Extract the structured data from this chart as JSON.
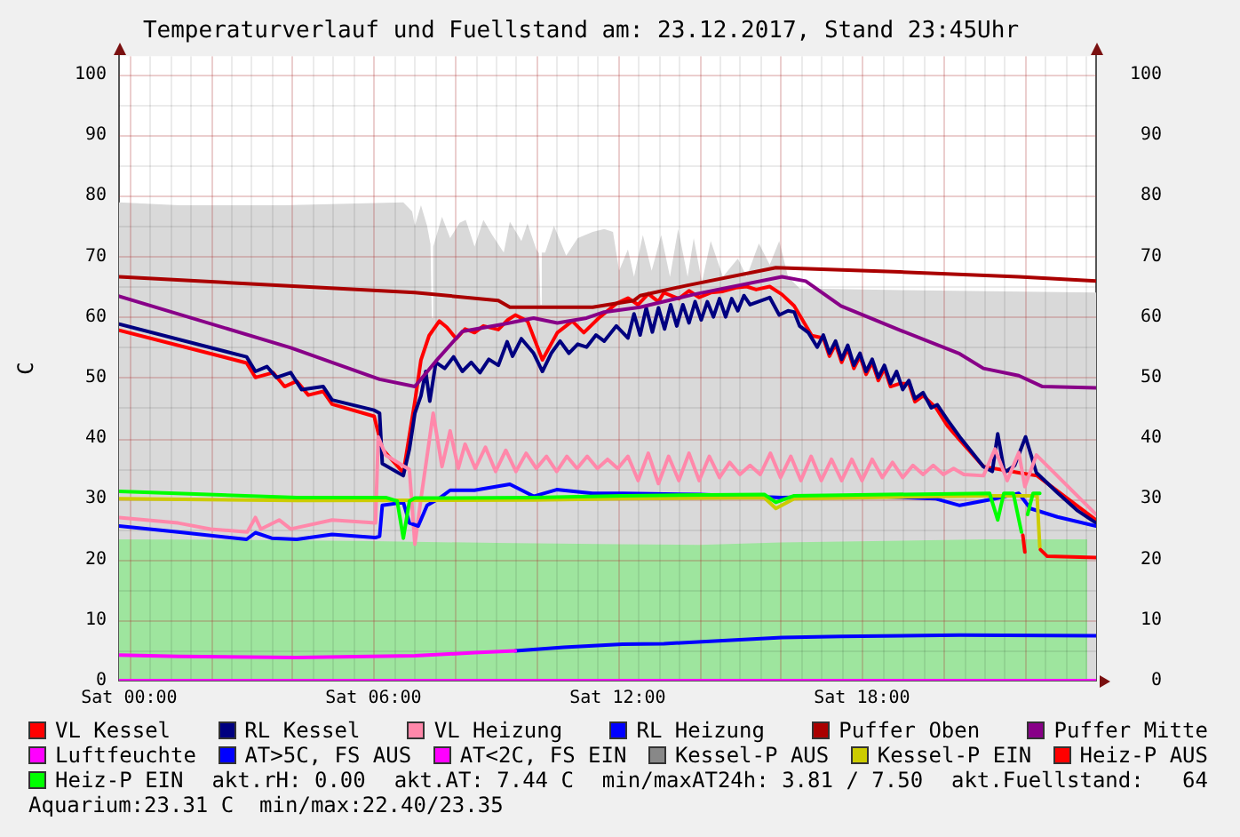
{
  "chart_data": {
    "type": "line",
    "title": "Temperaturverlauf und Fuellstand am: 23.12.2017, Stand 23:45Uhr",
    "ylabel": "C",
    "xlim": [
      "2017-12-22T23:45",
      "2017-12-23T23:45"
    ],
    "xticks": [
      {
        "value": "2017-12-23T00:00",
        "label": "Sat 00:00"
      },
      {
        "value": "2017-12-23T02:00",
        "label": null
      },
      {
        "value": "2017-12-23T04:00",
        "label": null
      },
      {
        "value": "2017-12-23T06:00",
        "label": "Sat 06:00"
      },
      {
        "value": "2017-12-23T08:00",
        "label": null
      },
      {
        "value": "2017-12-23T10:00",
        "label": null
      },
      {
        "value": "2017-12-23T12:00",
        "label": "Sat 12:00"
      },
      {
        "value": "2017-12-23T14:00",
        "label": null
      },
      {
        "value": "2017-12-23T16:00",
        "label": null
      },
      {
        "value": "2017-12-23T18:00",
        "label": "Sat 18:00"
      },
      {
        "value": "2017-12-23T20:00",
        "label": null
      },
      {
        "value": "2017-12-23T22:00",
        "label": null
      }
    ],
    "ylim": [
      0,
      103
    ],
    "yticks": [
      0,
      10,
      20,
      30,
      40,
      50,
      60,
      70,
      80,
      90,
      100
    ],
    "y2lim": [
      0,
      103
    ],
    "y2ticks": [
      0,
      10,
      20,
      30,
      40,
      50,
      60,
      70,
      80,
      90,
      100
    ],
    "grid": true,
    "legend": "bottom",
    "marker": "none",
    "series": [
      {
        "type": "area",
        "color": "#d9d9d9",
        "x": [
          "2017-12-22T23:45",
          "2017-12-23T01:13",
          "2017-12-23T03:49",
          "2017-12-23T06:44",
          "2017-12-23T06:50",
          "2017-12-23T06:57",
          "2017-12-23T07:01",
          "2017-12-23T07:10",
          "2017-12-23T07:19",
          "2017-12-23T07:24",
          "2017-12-23T07:26",
          "2017-12-23T07:28",
          "2017-12-23T07:41",
          "2017-12-23T07:53",
          "2017-12-23T08:07",
          "2017-12-23T08:16",
          "2017-12-23T08:29",
          "2017-12-23T08:42",
          "2017-12-23T08:55",
          "2017-12-23T09:12",
          "2017-12-23T09:21",
          "2017-12-23T09:38",
          "2017-12-23T09:47",
          "2017-12-23T10:00",
          "2017-12-23T10:04",
          "2017-12-23T10:06",
          "2017-12-23T10:08",
          "2017-12-23T10:13",
          "2017-12-23T10:26",
          "2017-12-23T10:44",
          "2017-12-23T11:01",
          "2017-12-23T11:23",
          "2017-12-23T11:40",
          "2017-12-23T11:53",
          "2017-12-23T12:02",
          "2017-12-23T12:15",
          "2017-12-23T12:24",
          "2017-12-23T12:37",
          "2017-12-23T12:50",
          "2017-12-23T13:04",
          "2017-12-23T13:17",
          "2017-12-23T13:29",
          "2017-12-23T13:43",
          "2017-12-23T13:52",
          "2017-12-23T14:04",
          "2017-12-23T14:17",
          "2017-12-23T14:35",
          "2017-12-23T14:57",
          "2017-12-23T15:10",
          "2017-12-23T15:28",
          "2017-12-23T15:44",
          "2017-12-23T15:58",
          "2017-12-23T16:11",
          "2017-12-23T16:28",
          "2017-12-23T18:56",
          "2017-12-23T23:45"
        ],
        "values": [
          78.9,
          78.4,
          78.4,
          78.9,
          78.2,
          77.4,
          75.0,
          78.4,
          75.0,
          72.0,
          59.8,
          71.6,
          76.5,
          73.0,
          75.5,
          76.0,
          71.6,
          76.0,
          73.5,
          70.6,
          75.7,
          72.5,
          75.4,
          71.1,
          70.5,
          62.0,
          70.6,
          70.6,
          75.0,
          70.1,
          73.0,
          74.0,
          74.5,
          74.0,
          67.6,
          71.1,
          66.6,
          73.5,
          67.6,
          73.5,
          66.6,
          74.5,
          66.6,
          73.0,
          65.7,
          72.5,
          66.6,
          69.6,
          66.6,
          72.1,
          68.6,
          72.5,
          66.6,
          64.7,
          64.4,
          64.0
        ]
      },
      {
        "type": "area",
        "color": "#9ee59e",
        "x": [
          "2017-12-22T23:45",
          "2017-12-23T03:00",
          "2017-12-23T06:00",
          "2017-12-23T09:00",
          "2017-12-23T12:00",
          "2017-12-23T14:00",
          "2017-12-23T16:00",
          "2017-12-23T19:00",
          "2017-12-23T21:00",
          "2017-12-23T23:32"
        ],
        "values": [
          23.3,
          23.2,
          23.0,
          22.7,
          22.5,
          22.4,
          22.8,
          23.1,
          23.3,
          23.3
        ]
      },
      {
        "name": "VL Kessel",
        "color": "#ff0000",
        "x": [
          "2017-12-22T23:45",
          "2017-12-23T02:53",
          "2017-12-23T03:06",
          "2017-12-23T03:32",
          "2017-12-23T03:49",
          "2017-12-23T04:07",
          "2017-12-23T04:24",
          "2017-12-23T04:46",
          "2017-12-23T04:59",
          "2017-12-23T06:01",
          "2017-12-23T06:13",
          "2017-12-23T06:44",
          "2017-12-23T07:01",
          "2017-12-23T07:10",
          "2017-12-23T07:22",
          "2017-12-23T07:37",
          "2017-12-23T07:48",
          "2017-12-23T08:02",
          "2017-12-23T08:15",
          "2017-12-23T08:29",
          "2017-12-23T08:42",
          "2017-12-23T09:04",
          "2017-12-23T09:18",
          "2017-12-23T09:29",
          "2017-12-23T09:47",
          "2017-12-23T10:09",
          "2017-12-23T10:31",
          "2017-12-23T10:53",
          "2017-12-23T11:10",
          "2017-12-23T11:32",
          "2017-12-23T11:58",
          "2017-12-23T12:15",
          "2017-12-23T12:30",
          "2017-12-23T12:45",
          "2017-12-23T13:00",
          "2017-12-23T13:08",
          "2017-12-23T13:30",
          "2017-12-23T13:45",
          "2017-12-23T14:00",
          "2017-12-23T14:17",
          "2017-12-23T14:35",
          "2017-12-23T14:54",
          "2017-12-23T15:10",
          "2017-12-23T15:24",
          "2017-12-23T15:44",
          "2017-12-23T16:02",
          "2017-12-23T16:20",
          "2017-12-23T16:46",
          "2017-12-23T17:03",
          "2017-12-23T17:12",
          "2017-12-23T17:21",
          "2017-12-23T17:30",
          "2017-12-23T17:39",
          "2017-12-23T17:48",
          "2017-12-23T17:57",
          "2017-12-23T18:06",
          "2017-12-23T18:15",
          "2017-12-23T18:24",
          "2017-12-23T18:33",
          "2017-12-23T18:42",
          "2017-12-23T18:56",
          "2017-12-23T19:09",
          "2017-12-23T19:18",
          "2017-12-23T19:30",
          "2017-12-23T19:49",
          "2017-12-23T20:06",
          "2017-12-23T20:24",
          "2017-12-23T20:59",
          "2017-12-23T21:51",
          "2017-12-23T22:18",
          "2017-12-23T23:45"
        ],
        "values": [
          57.8,
          52.4,
          50.0,
          50.8,
          48.5,
          49.4,
          47.1,
          47.7,
          45.6,
          43.6,
          38.2,
          34.3,
          46.0,
          52.9,
          56.9,
          59.3,
          58.3,
          56.4,
          58.0,
          57.4,
          58.5,
          57.9,
          59.5,
          60.3,
          59.3,
          52.9,
          57.4,
          59.3,
          57.4,
          59.8,
          62.2,
          63.1,
          62.0,
          63.8,
          62.5,
          64.0,
          63.0,
          64.3,
          63.2,
          64.0,
          64.2,
          64.8,
          65.0,
          64.5,
          65.0,
          63.7,
          61.8,
          56.9,
          56.5,
          53.5,
          55.5,
          52.5,
          54.8,
          51.5,
          53.5,
          50.5,
          52.5,
          49.5,
          51.5,
          48.5,
          49.0,
          49.0,
          46.0,
          47.0,
          45.0,
          42.0,
          39.7,
          35.3,
          34.3,
          33.8,
          26.5
        ]
      },
      {
        "name": "RL Kessel",
        "color": "#000080",
        "x": [
          "2017-12-22T23:45",
          "2017-12-23T02:53",
          "2017-12-23T03:06",
          "2017-12-23T03:23",
          "2017-12-23T03:37",
          "2017-12-23T03:58",
          "2017-12-23T04:14",
          "2017-12-23T04:46",
          "2017-12-23T04:59",
          "2017-12-23T06:01",
          "2017-12-23T06:09",
          "2017-12-23T06:13",
          "2017-12-23T06:44",
          "2017-12-23T06:53",
          "2017-12-23T07:01",
          "2017-12-23T07:10",
          "2017-12-23T07:17",
          "2017-12-23T07:23",
          "2017-12-23T07:32",
          "2017-12-23T07:45",
          "2017-12-23T07:58",
          "2017-12-23T08:11",
          "2017-12-23T08:24",
          "2017-12-23T08:37",
          "2017-12-23T08:50",
          "2017-12-23T09:04",
          "2017-12-23T09:17",
          "2017-12-23T09:25",
          "2017-12-23T09:38",
          "2017-12-23T09:56",
          "2017-12-23T10:09",
          "2017-12-23T10:22",
          "2017-12-23T10:35",
          "2017-12-23T10:48",
          "2017-12-23T11:01",
          "2017-12-23T11:14",
          "2017-12-23T11:28",
          "2017-12-23T11:40",
          "2017-12-23T11:58",
          "2017-12-23T12:15",
          "2017-12-23T12:24",
          "2017-12-23T12:33",
          "2017-12-23T12:42",
          "2017-12-23T12:51",
          "2017-12-23T13:00",
          "2017-12-23T13:09",
          "2017-12-23T13:18",
          "2017-12-23T13:27",
          "2017-12-23T13:36",
          "2017-12-23T13:45",
          "2017-12-23T13:54",
          "2017-12-23T14:03",
          "2017-12-23T14:12",
          "2017-12-23T14:21",
          "2017-12-23T14:30",
          "2017-12-23T14:39",
          "2017-12-23T14:48",
          "2017-12-23T14:57",
          "2017-12-23T15:06",
          "2017-12-23T15:15",
          "2017-12-23T15:44",
          "2017-12-23T15:58",
          "2017-12-23T16:11",
          "2017-12-23T16:20",
          "2017-12-23T16:28",
          "2017-12-23T16:41",
          "2017-12-23T16:54",
          "2017-12-23T17:03",
          "2017-12-23T17:12",
          "2017-12-23T17:21",
          "2017-12-23T17:30",
          "2017-12-23T17:39",
          "2017-12-23T17:48",
          "2017-12-23T17:57",
          "2017-12-23T18:06",
          "2017-12-23T18:15",
          "2017-12-23T18:24",
          "2017-12-23T18:33",
          "2017-12-23T18:42",
          "2017-12-23T18:51",
          "2017-12-23T19:00",
          "2017-12-23T19:09",
          "2017-12-23T19:18",
          "2017-12-23T19:30",
          "2017-12-23T19:42",
          "2017-12-23T19:51",
          "2017-12-23T20:06",
          "2017-12-23T20:24",
          "2017-12-23T20:59",
          "2017-12-23T21:12",
          "2017-12-23T21:20",
          "2017-12-23T21:30",
          "2017-12-23T21:45",
          "2017-12-23T22:01",
          "2017-12-23T22:17",
          "2017-12-23T22:48",
          "2017-12-23T23:18",
          "2017-12-23T23:45"
        ],
        "values": [
          58.8,
          53.4,
          51.0,
          51.8,
          50.0,
          50.8,
          48.0,
          48.5,
          46.3,
          44.6,
          44.1,
          35.8,
          33.8,
          38.2,
          44.1,
          47.0,
          51.0,
          46.1,
          52.5,
          51.5,
          53.4,
          51.0,
          52.5,
          50.8,
          53.0,
          52.0,
          55.9,
          53.5,
          56.4,
          54.0,
          51.0,
          54.0,
          56.0,
          54.0,
          55.5,
          55.0,
          57.0,
          56.0,
          58.5,
          56.5,
          60.5,
          57.0,
          61.5,
          57.5,
          61.5,
          58.0,
          62.0,
          58.5,
          62.0,
          59.0,
          62.5,
          59.5,
          62.5,
          60.0,
          63.0,
          60.0,
          63.0,
          61.0,
          63.5,
          62.0,
          63.2,
          60.3,
          61.0,
          60.8,
          58.5,
          57.4,
          55.0,
          57.0,
          54.0,
          56.0,
          53.0,
          55.3,
          52.0,
          54.0,
          51.0,
          53.0,
          50.0,
          52.0,
          49.0,
          51.0,
          48.0,
          49.5,
          46.5,
          47.5,
          45.0,
          45.5,
          43.0,
          40.2,
          35.3,
          34.5,
          40.7,
          34.3,
          35.5,
          40.2,
          34.3,
          31.0,
          28.0,
          26.0
        ]
      },
      {
        "name": "VL Heizung",
        "color": "#ff88aa",
        "x": [
          "2017-12-22T23:45",
          "2017-12-23T01:12",
          "2017-12-23T02:00",
          "2017-12-23T02:54",
          "2017-12-23T03:06",
          "2017-12-23T03:14",
          "2017-12-23T03:41",
          "2017-12-23T03:58",
          "2017-12-23T04:59",
          "2017-12-23T06:03",
          "2017-12-23T06:07",
          "2017-12-23T06:18",
          "2017-12-23T06:53",
          "2017-12-23T07:01",
          "2017-12-23T07:10",
          "2017-12-23T07:28",
          "2017-12-23T07:41",
          "2017-12-23T07:53",
          "2017-12-23T08:05",
          "2017-12-23T08:15",
          "2017-12-23T08:30",
          "2017-12-23T08:45",
          "2017-12-23T09:00",
          "2017-12-23T09:15",
          "2017-12-23T09:30",
          "2017-12-23T09:45",
          "2017-12-23T10:00",
          "2017-12-23T10:15",
          "2017-12-23T10:30",
          "2017-12-23T10:45",
          "2017-12-23T11:00",
          "2017-12-23T11:15",
          "2017-12-23T11:30",
          "2017-12-23T11:45",
          "2017-12-23T12:00",
          "2017-12-23T12:15",
          "2017-12-23T12:30",
          "2017-12-23T12:45",
          "2017-12-23T13:00",
          "2017-12-23T13:15",
          "2017-12-23T13:30",
          "2017-12-23T13:45",
          "2017-12-23T14:00",
          "2017-12-23T14:15",
          "2017-12-23T14:30",
          "2017-12-23T14:45",
          "2017-12-23T15:00",
          "2017-12-23T15:15",
          "2017-12-23T15:30",
          "2017-12-23T15:45",
          "2017-12-23T16:00",
          "2017-12-23T16:15",
          "2017-12-23T16:30",
          "2017-12-23T16:45",
          "2017-12-23T17:00",
          "2017-12-23T17:15",
          "2017-12-23T17:30",
          "2017-12-23T17:45",
          "2017-12-23T18:00",
          "2017-12-23T18:15",
          "2017-12-23T18:30",
          "2017-12-23T18:45",
          "2017-12-23T19:00",
          "2017-12-23T19:15",
          "2017-12-23T19:30",
          "2017-12-23T19:45",
          "2017-12-23T20:00",
          "2017-12-23T20:15",
          "2017-12-23T20:30",
          "2017-12-23T20:59",
          "2017-12-23T21:16",
          "2017-12-23T21:34",
          "2017-12-23T21:51",
          "2017-12-23T22:00",
          "2017-12-23T22:17",
          "2017-12-23T23:45"
        ],
        "values": [
          26.9,
          26.0,
          25.0,
          24.5,
          26.9,
          25.0,
          26.5,
          25.0,
          26.5,
          26.0,
          40.2,
          37.2,
          34.8,
          22.5,
          30.0,
          44.1,
          35.3,
          41.2,
          35.0,
          39.0,
          35.0,
          38.5,
          34.5,
          38.0,
          34.5,
          37.5,
          35.0,
          37.0,
          34.5,
          37.0,
          35.0,
          37.0,
          35.0,
          36.5,
          35.0,
          37.0,
          33.0,
          37.5,
          32.5,
          37.0,
          33.0,
          37.5,
          33.0,
          37.0,
          33.5,
          36.0,
          34.0,
          35.5,
          34.0,
          37.5,
          33.5,
          37.0,
          33.0,
          37.0,
          33.0,
          36.5,
          33.0,
          36.5,
          33.0,
          36.5,
          33.5,
          36.0,
          33.5,
          35.5,
          34.0,
          35.5,
          34.0,
          35.0,
          34.0,
          33.8,
          38.2,
          33.0,
          37.6,
          32.0,
          37.2,
          27.4
        ]
      },
      {
        "name": "RL Heizung",
        "color": "#0000ff",
        "x": [
          "2017-12-22T23:45",
          "2017-12-23T01:12",
          "2017-12-23T02:53",
          "2017-12-23T03:06",
          "2017-12-23T03:30",
          "2017-12-23T04:07",
          "2017-12-23T04:59",
          "2017-12-23T06:03",
          "2017-12-23T06:09",
          "2017-12-23T06:13",
          "2017-12-23T06:44",
          "2017-12-23T06:53",
          "2017-12-23T07:06",
          "2017-12-23T07:19",
          "2017-12-23T07:36",
          "2017-12-23T07:53",
          "2017-12-23T08:29",
          "2017-12-23T09:21",
          "2017-12-23T09:56",
          "2017-12-23T10:30",
          "2017-12-23T11:23",
          "2017-12-23T12:07",
          "2017-12-23T14:00",
          "2017-12-23T16:02",
          "2017-12-23T18:00",
          "2017-12-23T19:49",
          "2017-12-23T20:24",
          "2017-12-23T21:16",
          "2017-12-23T21:51",
          "2017-12-23T22:08",
          "2017-12-23T22:48",
          "2017-12-23T23:45"
        ],
        "values": [
          25.5,
          24.5,
          23.3,
          24.4,
          23.5,
          23.3,
          24.1,
          23.6,
          23.8,
          28.9,
          29.4,
          26.0,
          25.5,
          28.9,
          30.0,
          31.4,
          31.4,
          32.4,
          30.4,
          31.5,
          30.9,
          30.9,
          30.7,
          30.2,
          30.5,
          30.0,
          28.9,
          30.0,
          30.9,
          28.4,
          27.0,
          25.5
        ]
      },
      {
        "name": "Puffer Oben",
        "color": "#aa0000",
        "x": [
          "2017-12-22T23:45",
          "2017-12-23T07:01",
          "2017-12-23T09:04",
          "2017-12-23T09:21",
          "2017-12-23T11:23",
          "2017-12-23T12:24",
          "2017-12-23T12:33",
          "2017-12-23T13:43",
          "2017-12-23T15:53",
          "2017-12-23T18:56",
          "2017-12-23T21:51",
          "2017-12-23T23:45"
        ],
        "values": [
          66.6,
          64.0,
          62.7,
          61.6,
          61.6,
          62.7,
          63.5,
          65.2,
          68.1,
          67.4,
          66.6,
          65.9
        ]
      },
      {
        "name": "Puffer Mitte",
        "color": "#880088",
        "x": [
          "2017-12-22T23:45",
          "2017-12-23T03:58",
          "2017-12-23T06:09",
          "2017-12-23T07:01",
          "2017-12-23T07:32",
          "2017-12-23T08:11",
          "2017-12-23T09:12",
          "2017-12-23T09:56",
          "2017-12-23T10:31",
          "2017-12-23T11:14",
          "2017-12-23T11:40",
          "2017-12-23T12:33",
          "2017-12-23T13:52",
          "2017-12-23T16:02",
          "2017-12-23T16:37",
          "2017-12-23T17:29",
          "2017-12-23T18:56",
          "2017-12-23T20:24",
          "2017-12-23T20:59",
          "2017-12-23T21:51",
          "2017-12-23T22:26",
          "2017-12-23T23:45"
        ],
        "values": [
          63.4,
          54.9,
          49.7,
          48.5,
          52.7,
          57.6,
          58.8,
          59.8,
          59.0,
          59.8,
          60.8,
          61.6,
          63.7,
          66.6,
          65.9,
          61.8,
          57.8,
          53.9,
          51.5,
          50.3,
          48.5,
          48.3
        ]
      },
      {
        "name": "Luftfeuchte",
        "color": "#ff00ff",
        "x": [
          "2017-12-22T23:45",
          "2017-12-23T23:45"
        ],
        "values": [
          0,
          0
        ]
      },
      {
        "name": "AT>5C, FS AUS",
        "color": "#0000ff",
        "x": [
          "2017-12-23T09:29",
          "2017-12-23T10:40",
          "2017-12-23T12:07",
          "2017-12-23T13:08",
          "2017-12-23T14:35",
          "2017-12-23T16:02",
          "2017-12-23T17:29",
          "2017-12-23T20:24",
          "2017-12-23T23:45"
        ],
        "values": [
          4.9,
          5.5,
          6.0,
          6.1,
          6.6,
          7.1,
          7.3,
          7.5,
          7.4
        ]
      },
      {
        "name": "AT<2C, FS EIN",
        "color": "#ff00ff",
        "x": [
          "2017-12-22T23:45",
          "2017-12-23T01:13",
          "2017-12-23T04:07",
          "2017-12-23T07:01",
          "2017-12-23T08:29",
          "2017-12-23T09:29"
        ],
        "values": [
          4.2,
          4.0,
          3.8,
          4.1,
          4.6,
          4.9
        ]
      },
      {
        "name": "Kessel-P AUS",
        "color": "#888888"
      },
      {
        "name": "Kessel-P EIN",
        "color": "#cccc00",
        "x": [
          "2017-12-22T23:45",
          "2017-12-23T04:07",
          "2017-12-23T09:56",
          "2017-12-23T12:07",
          "2017-12-23T15:36",
          "2017-12-23T15:53",
          "2017-12-23T16:20",
          "2017-12-23T21:00",
          "2017-12-23T22:18",
          "2017-12-23T22:22"
        ],
        "values": [
          30.0,
          29.7,
          29.8,
          30.0,
          30.2,
          28.4,
          30.0,
          30.5,
          30.5,
          22.0
        ]
      },
      {
        "name": "Heiz-P AUS",
        "color": "#ff0000",
        "x": [
          "2017-12-23T21:57",
          "2017-12-23T22:00",
          "2017-12-23T22:03",
          "2017-12-23T22:23",
          "2017-12-23T22:33",
          "2017-12-23T23:45"
        ],
        "values": [
          24.0,
          21.2,
          null,
          21.6,
          20.5,
          20.3
        ]
      },
      {
        "name": "Heiz-P EIN",
        "color": "#00ff00",
        "x": [
          "2017-12-22T23:45",
          "2017-12-23T04:07",
          "2017-12-23T06:18",
          "2017-12-23T06:35",
          "2017-12-23T06:44",
          "2017-12-23T06:53",
          "2017-12-23T07:01",
          "2017-12-23T09:56",
          "2017-12-23T12:07",
          "2017-12-23T15:36",
          "2017-12-23T15:53",
          "2017-12-23T16:20",
          "2017-12-23T21:08",
          "2017-12-23T21:20",
          "2017-12-23T21:29",
          "2017-12-23T21:43",
          "2017-12-23T21:55",
          "2017-12-23T21:59",
          "2017-12-23T22:04",
          "2017-12-23T22:12",
          "2017-12-23T22:22"
        ],
        "values": [
          31.2,
          30.2,
          30.2,
          29.6,
          23.5,
          29.6,
          30.1,
          30.2,
          30.5,
          30.7,
          29.4,
          30.5,
          30.9,
          26.5,
          30.9,
          30.9,
          24.5,
          null,
          27.4,
          30.9,
          30.9
        ]
      }
    ],
    "annotations": [
      "akt.rH: 0.00",
      "akt.AT: 7.44 C",
      "min/maxAT24h: 3.81 / 7.50",
      "akt.Fuellstand:   64",
      "Aquarium:23.31 C  min/max:22.40/23.35"
    ]
  }
}
